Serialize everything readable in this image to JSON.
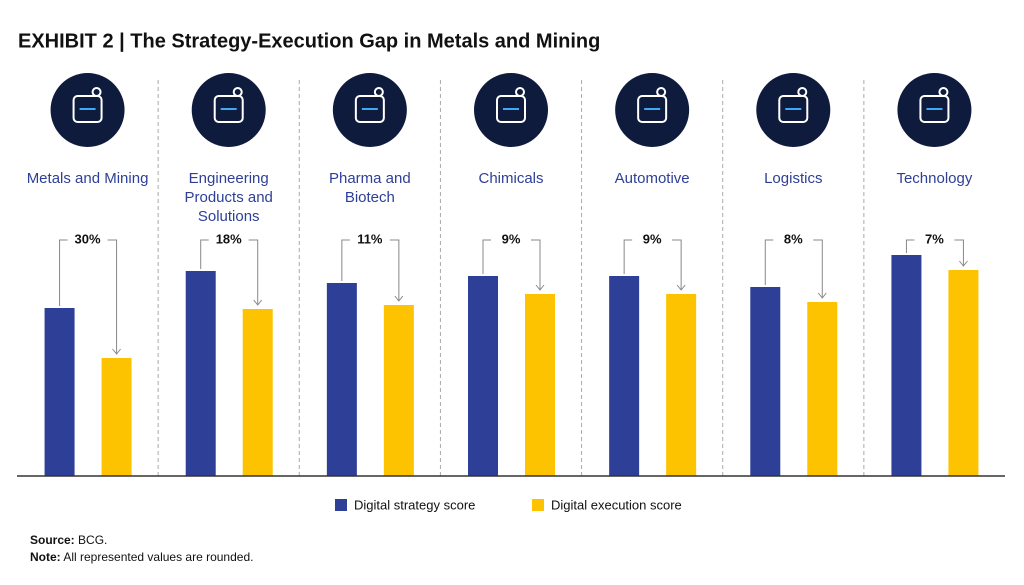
{
  "chart_data": {
    "type": "bar",
    "title": "EXHIBIT 2 | The Strategy-Execution Gap in Metals and Mining",
    "categories": [
      "Metals and Mining",
      "Engineering Products and Solutions",
      "Pharma and Biotech",
      "Chimicals",
      "Automotive",
      "Logistics",
      "Technology"
    ],
    "series": [
      {
        "name": "Digital strategy score",
        "color": "#2e3f97",
        "values": [
          168,
          205,
          193,
          200,
          200,
          189,
          221
        ]
      },
      {
        "name": "Digital execution score",
        "color": "#fdc300",
        "values": [
          118,
          167,
          171,
          182,
          182,
          174,
          206
        ]
      }
    ],
    "gaps": {
      "values": [
        30,
        18,
        11,
        9,
        9,
        8,
        7
      ],
      "value_labels": [
        "30%",
        "18%",
        "11%",
        "9%",
        "9%",
        "8%",
        "7%"
      ]
    },
    "ylim": [
      0,
      240
    ],
    "source_label": "Source:",
    "source": "BCG.",
    "note_label": "Note:",
    "note": "All represented values are rounded."
  }
}
